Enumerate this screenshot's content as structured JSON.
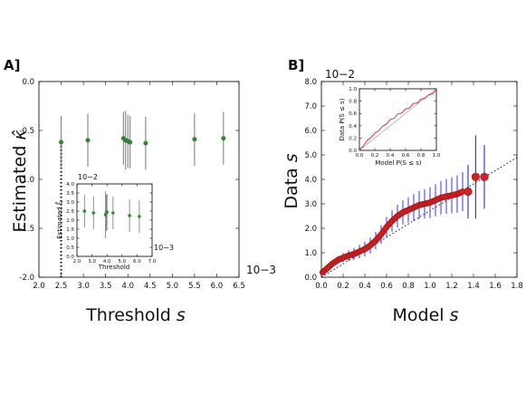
{
  "figure": {
    "background": "#ffffff"
  },
  "chart_data": [
    {
      "id": "panelA",
      "panel_label": "A]",
      "type": "scatter",
      "xlabel": "Threshold s",
      "xlabel_text": "Threshold ",
      "xlabel_var": "s",
      "ylabel": "Estimated κ̂",
      "ylabel_text": "Estimated ",
      "ylabel_var": "κ̂",
      "xlim": [
        2.0,
        6.5
      ],
      "ylim": [
        -2.0,
        0.0
      ],
      "xticks": [
        "2.0",
        "2.5",
        "3.0",
        "3.5",
        "4.0",
        "4.5",
        "5.0",
        "5.5",
        "6.0",
        "6.5"
      ],
      "yticks": [
        "0.0",
        "-0.5",
        "-1.0",
        "-1.5",
        "-2.0"
      ],
      "y_scale_label": "10−3",
      "marker_color": "#2e8b2e",
      "errorbar_color": "#777777",
      "vline": {
        "x": 2.5,
        "style": "dotted"
      },
      "points": [
        {
          "x": 2.5,
          "y": -0.62,
          "err": 0.27
        },
        {
          "x": 3.1,
          "y": -0.6,
          "err": 0.27
        },
        {
          "x": 3.9,
          "y": -0.58,
          "err": 0.27
        },
        {
          "x": 3.95,
          "y": -0.6,
          "err": 0.3
        },
        {
          "x": 4.0,
          "y": -0.61,
          "err": 0.27
        },
        {
          "x": 4.05,
          "y": -0.62,
          "err": 0.27
        },
        {
          "x": 4.4,
          "y": -0.63,
          "err": 0.27
        },
        {
          "x": 5.5,
          "y": -0.59,
          "err": 0.27
        },
        {
          "x": 6.15,
          "y": -0.58,
          "err": 0.27
        }
      ],
      "inset": {
        "xlabel": "Threshold",
        "ylabel": "Estimated ξ̂",
        "xlim": [
          2.0,
          7.0
        ],
        "ylim": [
          0.0,
          4.0
        ],
        "xticks": [
          "2.0",
          "3.0",
          "4.0",
          "5.0",
          "6.0",
          "7.0"
        ],
        "yticks": [
          "0.0",
          "0.5",
          "1.0",
          "1.5",
          "2.0",
          "2.5",
          "3.0",
          "3.5",
          "4.0"
        ],
        "y_scale_label": "10−2",
        "x_scale_label": "10−3",
        "points": [
          {
            "x": 2.5,
            "y": 2.5,
            "err": 0.9
          },
          {
            "x": 3.1,
            "y": 2.4,
            "err": 0.9
          },
          {
            "x": 3.9,
            "y": 2.3,
            "err": 1.3
          },
          {
            "x": 3.95,
            "y": 2.4,
            "err": 1.0
          },
          {
            "x": 4.0,
            "y": 2.45,
            "err": 1.0
          },
          {
            "x": 4.4,
            "y": 2.4,
            "err": 0.9
          },
          {
            "x": 5.5,
            "y": 2.25,
            "err": 0.9
          },
          {
            "x": 6.15,
            "y": 2.2,
            "err": 0.9
          }
        ]
      }
    },
    {
      "id": "panelB",
      "panel_label": "B]",
      "type": "scatter",
      "xlabel": "Model s",
      "xlabel_text": "Model ",
      "xlabel_var": "s",
      "ylabel": "Data s",
      "ylabel_text": "Data ",
      "ylabel_var": "s",
      "xlim": [
        0.0,
        1.8
      ],
      "ylim": [
        0.0,
        8.0
      ],
      "xticks": [
        "0.0",
        "0.2",
        "0.4",
        "0.6",
        "0.8",
        "1.0",
        "1.2",
        "1.4",
        "1.6",
        "1.8"
      ],
      "yticks": [
        "0.0",
        "1.0",
        "2.0",
        "3.0",
        "4.0",
        "5.0",
        "6.0",
        "7.0",
        "8.0"
      ],
      "y_scale_label": "10−2",
      "marker_color": "#d42020",
      "errorbar_color": "#3a3ad8",
      "reference_line": {
        "from": [
          0.0,
          0.0
        ],
        "to": [
          1.8,
          4.9
        ],
        "style": "dotted"
      },
      "curve": [
        [
          0.01,
          0.2
        ],
        [
          0.05,
          0.35
        ],
        [
          0.1,
          0.55
        ],
        [
          0.15,
          0.7
        ],
        [
          0.2,
          0.8
        ],
        [
          0.25,
          0.88
        ],
        [
          0.3,
          0.95
        ],
        [
          0.35,
          1.05
        ],
        [
          0.4,
          1.15
        ],
        [
          0.45,
          1.3
        ],
        [
          0.5,
          1.5
        ],
        [
          0.55,
          1.75
        ],
        [
          0.6,
          2.05
        ],
        [
          0.65,
          2.3
        ],
        [
          0.7,
          2.5
        ],
        [
          0.75,
          2.65
        ],
        [
          0.8,
          2.75
        ],
        [
          0.85,
          2.85
        ],
        [
          0.9,
          2.95
        ],
        [
          0.95,
          3.0
        ],
        [
          1.0,
          3.05
        ],
        [
          1.05,
          3.15
        ],
        [
          1.1,
          3.25
        ],
        [
          1.15,
          3.3
        ],
        [
          1.2,
          3.35
        ],
        [
          1.25,
          3.4
        ],
        [
          1.3,
          3.5
        ]
      ],
      "big_points": [
        {
          "x": 1.35,
          "y": 3.5,
          "err": 1.1
        },
        {
          "x": 1.42,
          "y": 4.1,
          "err": 1.7
        },
        {
          "x": 1.5,
          "y": 4.1,
          "err": 1.3
        }
      ],
      "inset": {
        "xlabel": "Model P(S ≤ s)",
        "ylabel": "Data P(S ≤ s)",
        "xlim": [
          0.0,
          1.0
        ],
        "ylim": [
          0.0,
          1.0
        ],
        "xticks": [
          "0.0",
          "0.2",
          "0.4",
          "0.6",
          "0.8",
          "1.0"
        ],
        "yticks": [
          "0.0",
          "0.2",
          "0.4",
          "0.6",
          "0.8",
          "1.0"
        ],
        "line_color": "#d42020",
        "curve": [
          [
            0.0,
            0.0
          ],
          [
            0.05,
            0.08
          ],
          [
            0.1,
            0.15
          ],
          [
            0.15,
            0.22
          ],
          [
            0.2,
            0.27
          ],
          [
            0.25,
            0.33
          ],
          [
            0.3,
            0.38
          ],
          [
            0.35,
            0.44
          ],
          [
            0.4,
            0.49
          ],
          [
            0.45,
            0.53
          ],
          [
            0.5,
            0.58
          ],
          [
            0.55,
            0.62
          ],
          [
            0.6,
            0.66
          ],
          [
            0.65,
            0.7
          ],
          [
            0.7,
            0.75
          ],
          [
            0.75,
            0.78
          ],
          [
            0.8,
            0.82
          ],
          [
            0.85,
            0.86
          ],
          [
            0.9,
            0.89
          ],
          [
            0.95,
            0.93
          ],
          [
            1.0,
            0.97
          ]
        ]
      }
    }
  ]
}
